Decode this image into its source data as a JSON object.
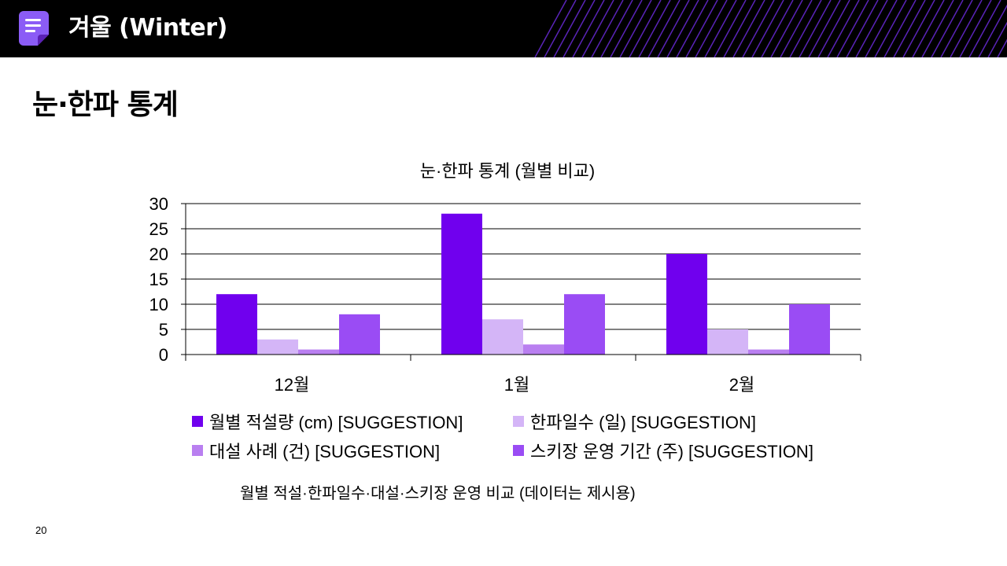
{
  "header": {
    "app_title": "겨울 (Winter)",
    "icon": "document-icon",
    "bar_color": "#000000",
    "stripe_color": "#6a2bd9",
    "icon_color": "#8b5cf6"
  },
  "page_title": "눈·한파 통계",
  "chart_data": {
    "type": "bar",
    "title": "눈·한파 통계 (월별 비교)",
    "xlabel": "",
    "ylabel": "",
    "categories": [
      "12월",
      "1월",
      "2월"
    ],
    "ylim": [
      0,
      30
    ],
    "yticks": [
      0,
      5,
      10,
      15,
      20,
      25,
      30
    ],
    "grid": true,
    "legend_position": "bottom",
    "series": [
      {
        "name": "월별 적설량 (cm) [SUGGESTION]",
        "values": [
          12,
          28,
          20
        ],
        "color": "#7000ee"
      },
      {
        "name": "한파일수 (일) [SUGGESTION]",
        "values": [
          3,
          7,
          5
        ],
        "color": "#d4b5f7"
      },
      {
        "name": "대설 사례 (건) [SUGGESTION]",
        "values": [
          1,
          2,
          1
        ],
        "color": "#b97ff0"
      },
      {
        "name": "스키장 운영 기간 (주) [SUGGESTION]",
        "values": [
          8,
          12,
          10
        ],
        "color": "#9a4cf4"
      }
    ]
  },
  "caption": "월별 적설·한파일수·대설·스키장 운영 비교 (데이터는 제시용)",
  "page_number": "20"
}
